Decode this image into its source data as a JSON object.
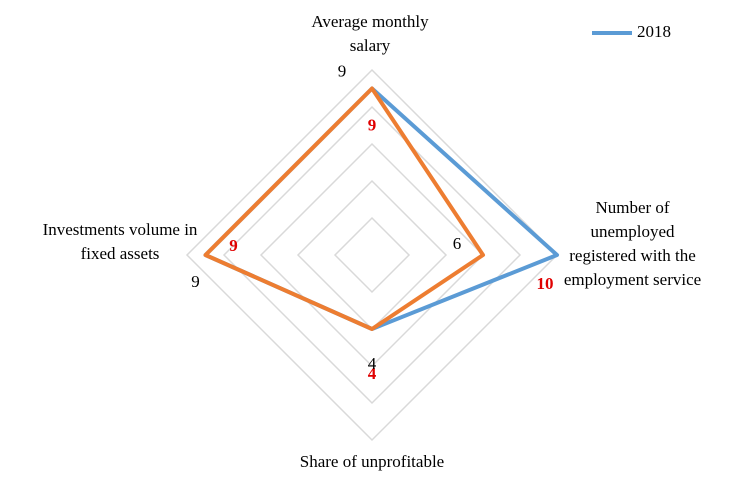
{
  "chart_data": {
    "type": "radar",
    "categories": [
      "Average monthly salary",
      "Number of unemployed registered with the employment service",
      "Share of unprofitable",
      "Investments volume in fixed assets"
    ],
    "series": [
      {
        "name": "2018",
        "color": "#5b9bd5",
        "values": [
          9,
          10,
          4,
          9
        ],
        "label_color": "#e00000"
      },
      {
        "color": "#ed7d31",
        "values": [
          9,
          6,
          4,
          9
        ],
        "label_color": "#000000"
      }
    ],
    "ylim": [
      0,
      10
    ],
    "yticks": [
      0,
      2,
      4,
      6,
      8,
      10
    ],
    "grid": true,
    "grid_color": "#d9d9d9",
    "legend": "top-right"
  }
}
